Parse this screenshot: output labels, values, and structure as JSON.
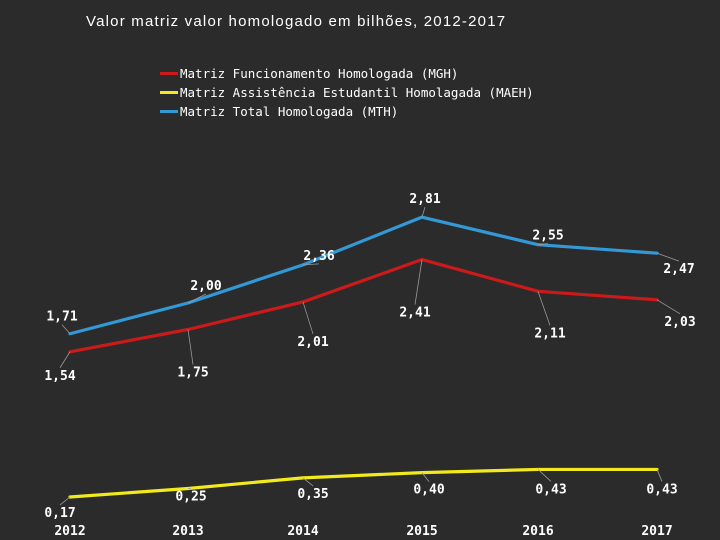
{
  "chart_data": {
    "type": "line",
    "title": "Valor  matriz  valor homologado em bilhões, 2012-2017",
    "categories": [
      "2012",
      "2013",
      "2014",
      "2015",
      "2016",
      "2017"
    ],
    "ylim": [
      0,
      3.2
    ],
    "xlabel": "",
    "ylabel": "",
    "series": [
      {
        "name": "Matriz Funcionamento Homologada (MGH)",
        "color": "#cc1a1a",
        "values": [
          1.54,
          1.75,
          2.01,
          2.41,
          2.11,
          2.03
        ],
        "labels": [
          "1,54",
          "1,75",
          "2,01",
          "2,41",
          "2,11",
          "2,03"
        ]
      },
      {
        "name": "Matriz Assistência Estudantil Homolagada (MAEH)",
        "color": "#f2ea1c",
        "values": [
          0.17,
          0.25,
          0.35,
          0.4,
          0.43,
          0.43
        ],
        "labels": [
          "0,17",
          "0,25",
          "0,35",
          "0,40",
          "0,43",
          "0,43"
        ]
      },
      {
        "name": "Matriz Total Homologada (MTH)",
        "color": "#3399d6",
        "values": [
          1.71,
          2.0,
          2.36,
          2.81,
          2.55,
          2.47
        ],
        "labels": [
          "1,71",
          "2,00",
          "2,36",
          "2,81",
          "2,55",
          "2,47"
        ]
      }
    ],
    "legend_position": "top-center"
  }
}
